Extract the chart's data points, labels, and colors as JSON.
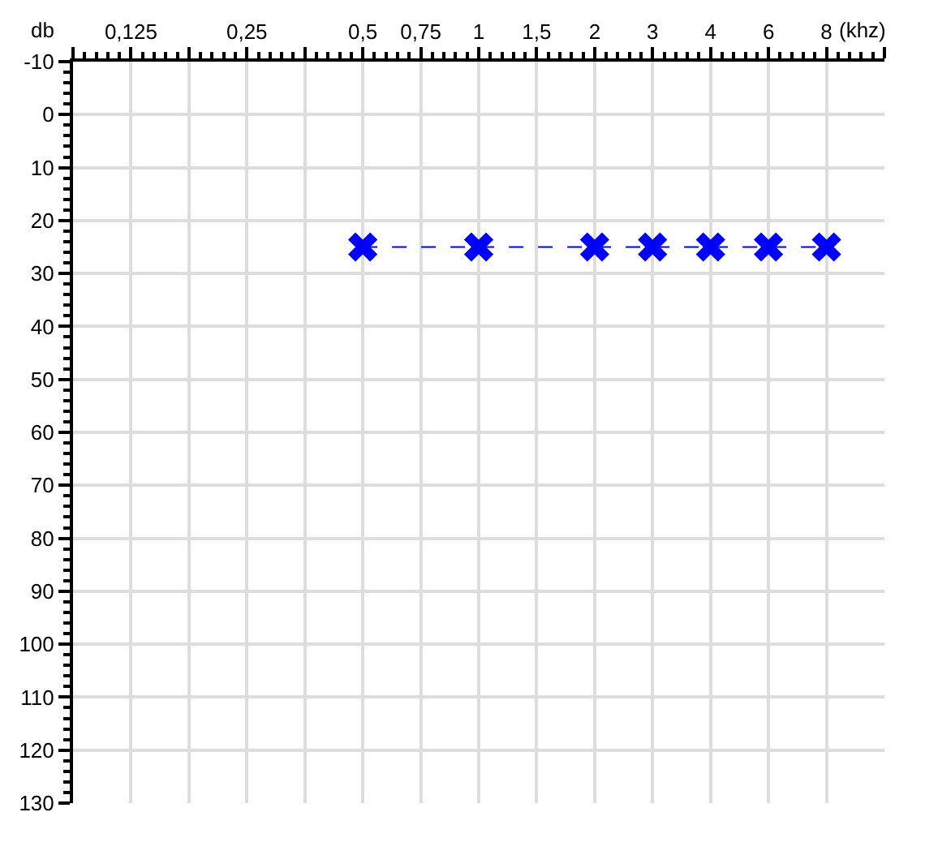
{
  "chart_data": {
    "type": "line",
    "xlabel": "(khz)",
    "ylabel": "db",
    "categories": [
      null,
      "0,125",
      null,
      "0,25",
      null,
      "0,5",
      "0,75",
      "1",
      "1,5",
      "2",
      "3",
      "4",
      "6",
      "8",
      null
    ],
    "series": [
      {
        "color": "#0000ff",
        "values": [
          null,
          null,
          null,
          null,
          null,
          25,
          null,
          25,
          null,
          25,
          25,
          25,
          25,
          25,
          null
        ]
      }
    ],
    "ylim": [
      130,
      -10
    ],
    "yticks": [
      -10,
      0,
      10,
      20,
      30,
      40,
      50,
      60,
      70,
      80,
      90,
      100,
      110,
      120,
      130
    ],
    "grid": true,
    "marker": "cross",
    "line_style": "dashed",
    "legend": false
  }
}
